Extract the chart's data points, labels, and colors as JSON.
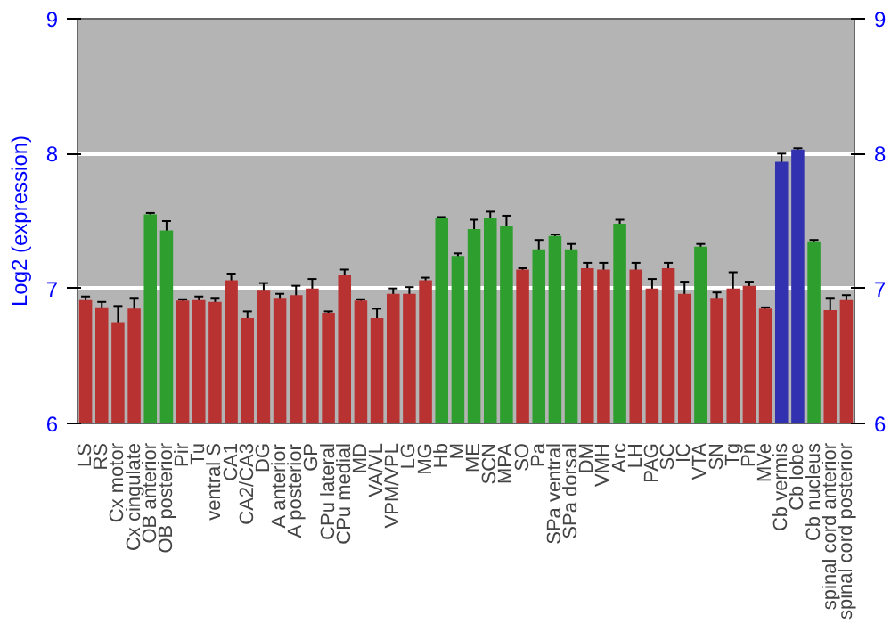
{
  "chart_data": {
    "type": "bar",
    "ylabel": "Log2 (expression)",
    "categories": [
      "LS",
      "RS",
      "Cx motor",
      "Cx cingulate",
      "OB anterior",
      "OB posterior",
      "Pir",
      "Tu",
      "ventral S",
      "CA1",
      "CA2/CA3",
      "DG",
      "A anterior",
      "A posterior",
      "GP",
      "CPu lateral",
      "CPu medial",
      "MD",
      "VA/VL",
      "VPM/VPL",
      "LG",
      "MG",
      "Hb",
      "M",
      "ME",
      "SCN",
      "MPA",
      "SO",
      "Pa",
      "SPa ventral",
      "SPa dorsal",
      "DM",
      "VMH",
      "Arc",
      "LH",
      "PAG",
      "SC",
      "IC",
      "VTA",
      "SN",
      "Tg",
      "Pn",
      "MVe",
      "Cb vermis",
      "Cb lobe",
      "Cb nucleus",
      "spinal cord anterior",
      "spinal cord posterior"
    ],
    "values": [
      6.92,
      6.86,
      6.75,
      6.85,
      7.55,
      7.43,
      6.91,
      6.92,
      6.9,
      7.06,
      6.78,
      6.99,
      6.93,
      6.95,
      7.0,
      6.82,
      7.1,
      6.91,
      6.78,
      6.96,
      6.96,
      7.06,
      7.52,
      7.24,
      7.44,
      7.52,
      7.46,
      7.14,
      7.29,
      7.39,
      7.29,
      7.15,
      7.14,
      7.48,
      7.14,
      7.0,
      7.15,
      6.96,
      7.31,
      6.93,
      7.0,
      7.02,
      6.85,
      7.94,
      8.03,
      7.35,
      6.84,
      6.92
    ],
    "errors": [
      0.02,
      0.04,
      0.12,
      0.08,
      0.01,
      0.07,
      0.01,
      0.02,
      0.03,
      0.05,
      0.05,
      0.05,
      0.03,
      0.07,
      0.07,
      0.01,
      0.04,
      0.01,
      0.07,
      0.04,
      0.05,
      0.02,
      0.01,
      0.02,
      0.07,
      0.05,
      0.08,
      0.01,
      0.07,
      0.01,
      0.04,
      0.04,
      0.05,
      0.03,
      0.05,
      0.07,
      0.04,
      0.09,
      0.02,
      0.04,
      0.12,
      0.03,
      0.01,
      0.06,
      0.01,
      0.01,
      0.09,
      0.03
    ],
    "colors": [
      "#b83232",
      "#b83232",
      "#b83232",
      "#b83232",
      "#2e9e2e",
      "#2e9e2e",
      "#b83232",
      "#b83232",
      "#b83232",
      "#b83232",
      "#b83232",
      "#b83232",
      "#b83232",
      "#b83232",
      "#b83232",
      "#b83232",
      "#b83232",
      "#b83232",
      "#b83232",
      "#b83232",
      "#b83232",
      "#b83232",
      "#2e9e2e",
      "#2e9e2e",
      "#2e9e2e",
      "#2e9e2e",
      "#2e9e2e",
      "#b83232",
      "#2e9e2e",
      "#2e9e2e",
      "#2e9e2e",
      "#b83232",
      "#b83232",
      "#2e9e2e",
      "#b83232",
      "#b83232",
      "#b83232",
      "#b83232",
      "#2e9e2e",
      "#b83232",
      "#b83232",
      "#b83232",
      "#b83232",
      "#3232b0",
      "#3232b0",
      "#2e9e2e",
      "#b83232",
      "#b83232"
    ],
    "ylim": [
      6,
      9
    ],
    "yticks": [
      6,
      7,
      8,
      9
    ],
    "y2lim": [
      6,
      9
    ],
    "y2ticks": [
      6,
      7,
      8,
      9
    ],
    "grid": "y"
  }
}
